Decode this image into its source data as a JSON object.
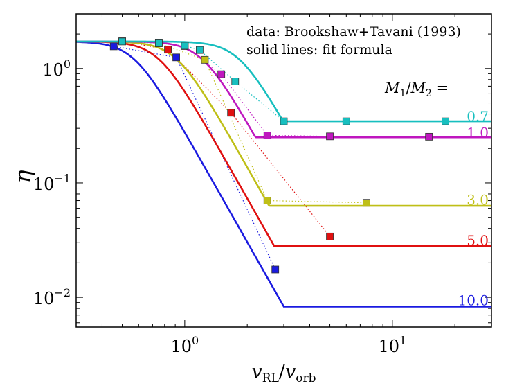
{
  "chart_data": {
    "type": "line",
    "x_scale": "log",
    "y_scale": "log",
    "xlim": [
      0.3,
      30
    ],
    "ylim": [
      0.0055,
      3
    ],
    "x_ticks": [
      {
        "value": 1,
        "label": "10",
        "exp": "0"
      },
      {
        "value": 10,
        "label": "10",
        "exp": "1"
      }
    ],
    "y_ticks": [
      {
        "value": 1,
        "label": "10",
        "exp": "0"
      },
      {
        "value": 0.1,
        "label": "10",
        "exp": "−1"
      },
      {
        "value": 0.01,
        "label": "10",
        "exp": "−2"
      }
    ],
    "xlabel": {
      "v1": "v",
      "sub1": "RL",
      "slash": "/",
      "v2": "v",
      "sub2": "orb"
    },
    "ylabel": "η",
    "annotations": [
      "data: Brookshaw+Tavani (1993)",
      "solid lines: fit formula"
    ],
    "legend_title": {
      "m1": "M",
      "sub1": "1",
      "slash": "/",
      "m2": "M",
      "sub2": "2",
      "eq": " ="
    },
    "series": [
      {
        "label": "0.7",
        "color": "#17bfbf",
        "asymptote": 0.345,
        "transition": 3.0,
        "data_x": [
          0.5,
          0.75,
          1.0,
          1.18,
          1.75,
          3.0,
          6.0,
          18.0
        ],
        "data_y": [
          1.72,
          1.66,
          1.58,
          1.45,
          0.77,
          0.345,
          0.345,
          0.345
        ]
      },
      {
        "label": "1.0",
        "color": "#bf17bf",
        "asymptote": 0.25,
        "transition": 2.2,
        "data_x": [
          1.0,
          1.5,
          2.5,
          5.0,
          15.0
        ],
        "data_y": [
          1.57,
          0.89,
          0.26,
          0.255,
          0.253
        ]
      },
      {
        "label": "3.0",
        "color": "#bfbf17",
        "asymptote": 0.063,
        "transition": 2.55,
        "data_x": [
          0.75,
          1.25,
          2.5,
          7.5
        ],
        "data_y": [
          1.66,
          1.19,
          0.07,
          0.067
        ]
      },
      {
        "label": "5.0",
        "color": "#e01010",
        "asymptote": 0.028,
        "transition": 2.7,
        "data_x": [
          0.5,
          0.83,
          1.67,
          5.0
        ],
        "data_y": [
          1.73,
          1.46,
          0.41,
          0.034
        ]
      },
      {
        "label": "10.0",
        "color": "#1a1ae0",
        "asymptote": 0.0083,
        "transition": 3.0,
        "data_x": [
          0.455,
          0.91,
          2.73
        ],
        "data_y": [
          1.56,
          1.25,
          0.0175
        ]
      }
    ]
  }
}
